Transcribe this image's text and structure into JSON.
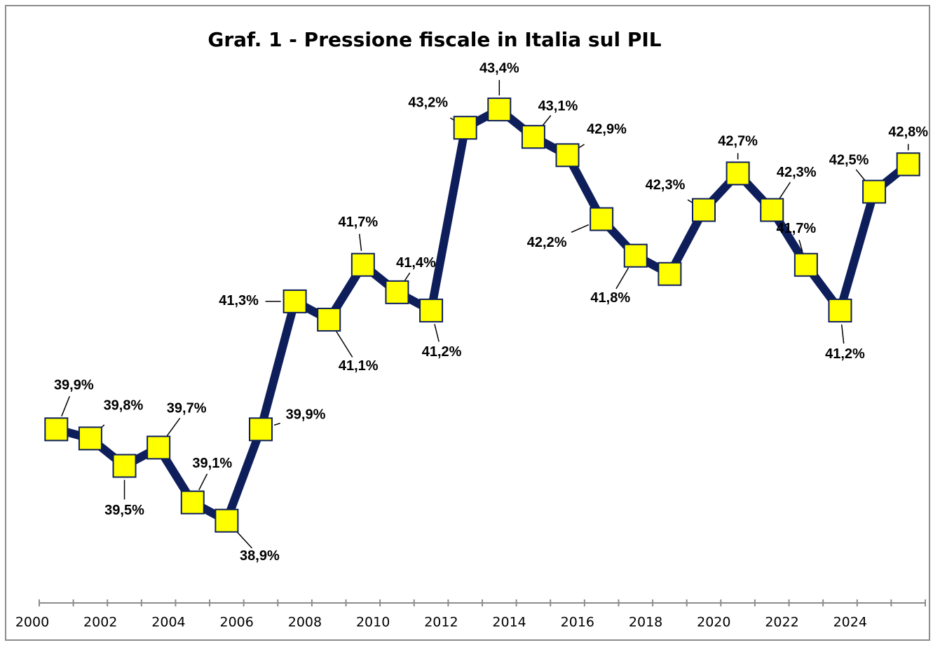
{
  "chart_data": {
    "type": "line",
    "title": "Graf. 1 - Pressione fiscale in Italia sul PIL",
    "categories": [
      "2000",
      null,
      "2002",
      null,
      "2004",
      null,
      "2006",
      null,
      "2008",
      null,
      "2010",
      null,
      "2012",
      null,
      "2014",
      null,
      "2016",
      null,
      "2018",
      null,
      "2020",
      null,
      "2022",
      null,
      "2024",
      null
    ],
    "values": [
      39.9,
      39.8,
      39.5,
      39.7,
      39.1,
      38.9,
      39.9,
      41.3,
      41.1,
      41.7,
      41.4,
      41.2,
      43.2,
      43.4,
      43.1,
      42.9,
      42.2,
      41.8,
      41.6,
      42.3,
      42.7,
      42.3,
      41.7,
      41.2,
      42.5,
      42.8
    ],
    "value_labels": [
      "39,9%",
      "39,8%",
      "39,5%",
      "39,7%",
      "39,1%",
      "38,9%",
      "39,9%",
      "41,3%",
      "41,1%",
      "41,7%",
      "41,4%",
      "41,2%",
      "43,2%",
      "43,4%",
      "43,1%",
      "42,9%",
      "42,2%",
      "41,8%",
      null,
      "42,3%",
      "42,7%",
      "42,3%",
      "41,7%",
      "41,2%",
      "42,5%",
      "42,8%"
    ],
    "color": "#0d1e5b",
    "marker_color": "#ffff00",
    "ylim": [
      38,
      43.8
    ]
  }
}
